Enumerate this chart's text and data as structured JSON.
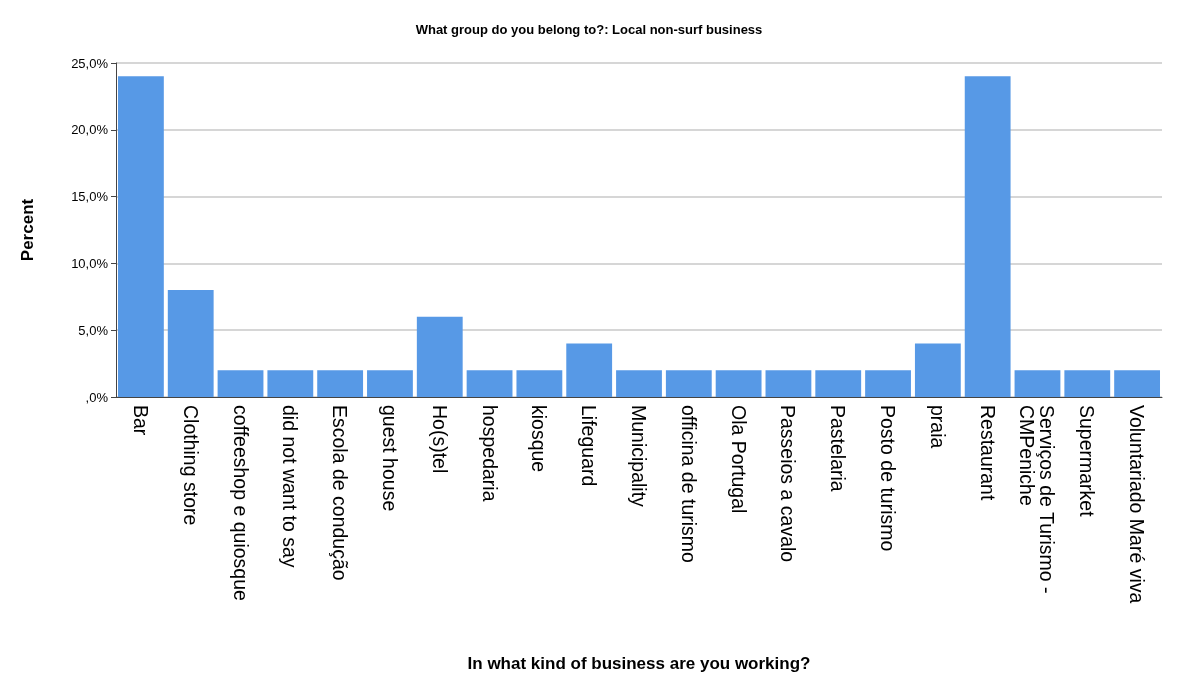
{
  "chart_data": {
    "type": "bar",
    "title": "What group do you belong to?: Local non-surf business",
    "xlabel": "In what kind of business are you working?",
    "ylabel": "Percent",
    "categories": [
      "Bar",
      "Clothing store",
      "coffeeshop e quiosque",
      "did not want to say",
      "Escola de condução",
      "guest house",
      "Ho(s)tel",
      "hospedaria",
      "kiosque",
      "Lifeguard",
      "Municipality",
      "officina de turismo",
      "Ola Portugal",
      "Passeios a cavalo",
      "Pastelaria",
      "Posto de turismo",
      "praia",
      "Restaurant",
      "Serviços de Turismo - CMPeniche",
      "Supermarket",
      "Voluntariado Maré viva"
    ],
    "values": [
      24,
      8,
      2,
      2,
      2,
      2,
      6,
      2,
      2,
      4,
      2,
      2,
      2,
      2,
      2,
      2,
      4,
      24,
      2,
      2,
      2
    ],
    "color": "#5799e6",
    "ylim": [
      0,
      25
    ],
    "yticks": [
      {
        "value": 0,
        "label": ",0%"
      },
      {
        "value": 5,
        "label": "5,0%"
      },
      {
        "value": 10,
        "label": "10,0%"
      },
      {
        "value": 15,
        "label": "15,0%"
      },
      {
        "value": 20,
        "label": "20,0%"
      },
      {
        "value": 25,
        "label": "25,0%"
      }
    ],
    "grid": "y"
  }
}
